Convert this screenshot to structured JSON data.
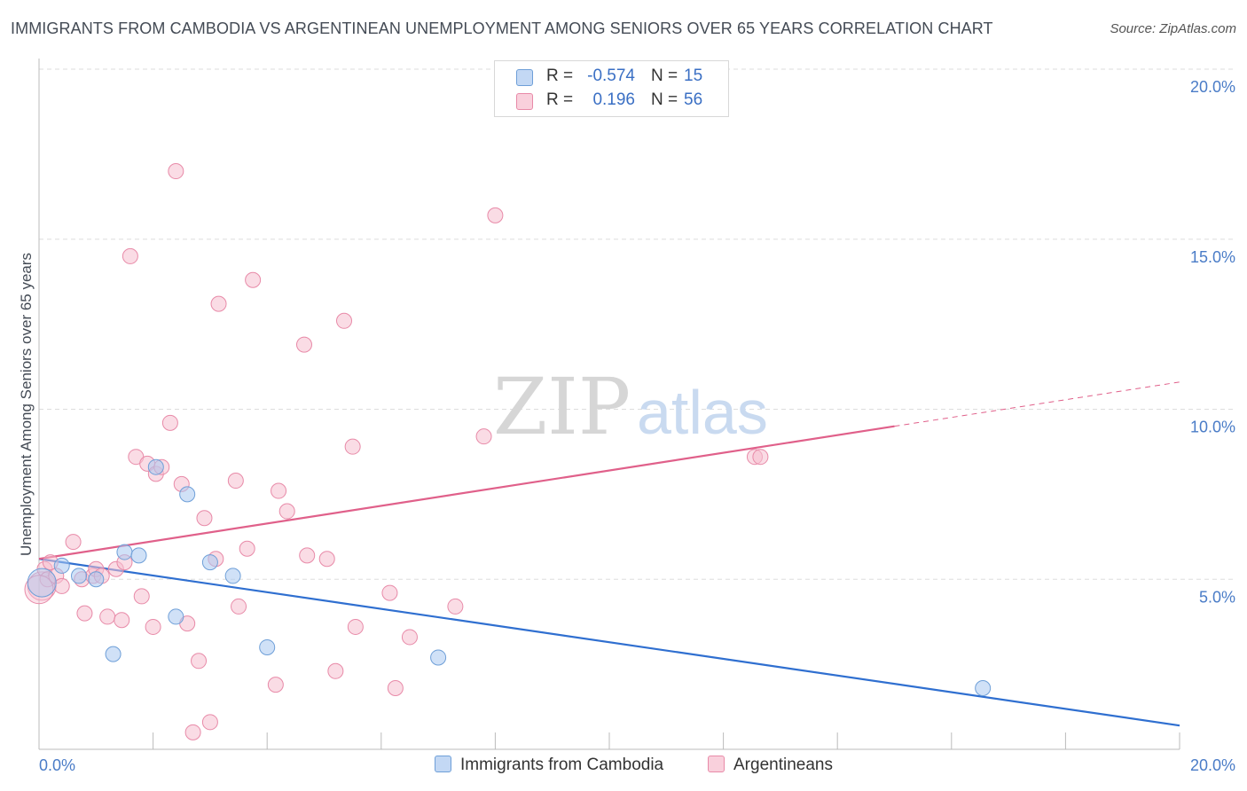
{
  "title": "IMMIGRANTS FROM CAMBODIA VS ARGENTINEAN UNEMPLOYMENT AMONG SENIORS OVER 65 YEARS CORRELATION CHART",
  "source": "Source: ZipAtlas.com",
  "watermark": {
    "zip": "ZIP",
    "atlas": "atlas"
  },
  "legend": {
    "rows": [
      {
        "r_label": "R =",
        "r_value": "-0.574",
        "n_label": "N =",
        "n_value": "15"
      },
      {
        "r_label": "R =",
        "r_value": "0.196",
        "n_label": "N =",
        "n_value": "56"
      }
    ]
  },
  "colors": {
    "blue_fill": "#aac8f0",
    "blue_stroke": "#6e9fd8",
    "blue_line": "#2f6fd0",
    "pink_fill": "#f6bfd0",
    "pink_stroke": "#e88aa8",
    "pink_line": "#e0608a",
    "tick_label": "#4a7cc7",
    "grid": "#dddddd"
  },
  "chart_data": {
    "type": "scatter",
    "title": "IMMIGRANTS FROM CAMBODIA VS ARGENTINEAN UNEMPLOYMENT AMONG SENIORS OVER 65 YEARS CORRELATION CHART",
    "xlabel": "",
    "ylabel": "Unemployment Among Seniors over 65 years",
    "xlim": [
      0,
      20
    ],
    "ylim": [
      0,
      20
    ],
    "x_tick_labels": [
      "0.0%",
      "20.0%"
    ],
    "y_ticks": [
      5,
      10,
      15,
      20
    ],
    "y_tick_labels": [
      "5.0%",
      "10.0%",
      "15.0%",
      "20.0%"
    ],
    "grid": true,
    "legend_position": "top-center",
    "series": [
      {
        "name": "Immigrants from Cambodia",
        "color": "#aac8f0",
        "points": [
          [
            0.05,
            4.9
          ],
          [
            0.4,
            5.4
          ],
          [
            0.7,
            5.1
          ],
          [
            1.0,
            5.0
          ],
          [
            1.3,
            2.8
          ],
          [
            1.5,
            5.8
          ],
          [
            1.75,
            5.7
          ],
          [
            2.05,
            8.3
          ],
          [
            2.4,
            3.9
          ],
          [
            2.6,
            7.5
          ],
          [
            3.0,
            5.5
          ],
          [
            3.4,
            5.1
          ],
          [
            4.0,
            3.0
          ],
          [
            7.0,
            2.7
          ],
          [
            16.55,
            1.8
          ]
        ],
        "trend": {
          "x": [
            0,
            20
          ],
          "y": [
            5.6,
            0.7
          ],
          "solid_to": 20
        }
      },
      {
        "name": "Argentineans",
        "color": "#f6bfd0",
        "points": [
          [
            0.05,
            4.8
          ],
          [
            0.1,
            5.3
          ],
          [
            0.15,
            5.0
          ],
          [
            0.2,
            5.5
          ],
          [
            0.3,
            5.1
          ],
          [
            0.4,
            4.8
          ],
          [
            0.6,
            6.1
          ],
          [
            0.75,
            5.0
          ],
          [
            0.8,
            4.0
          ],
          [
            0.95,
            5.1
          ],
          [
            1.0,
            5.3
          ],
          [
            1.1,
            5.1
          ],
          [
            1.2,
            3.9
          ],
          [
            1.35,
            5.3
          ],
          [
            1.45,
            3.8
          ],
          [
            1.5,
            5.5
          ],
          [
            1.6,
            14.5
          ],
          [
            1.7,
            8.6
          ],
          [
            1.8,
            4.5
          ],
          [
            1.9,
            8.4
          ],
          [
            2.0,
            3.6
          ],
          [
            2.05,
            8.1
          ],
          [
            2.15,
            8.3
          ],
          [
            2.3,
            9.6
          ],
          [
            2.4,
            17.0
          ],
          [
            2.5,
            7.8
          ],
          [
            2.6,
            3.7
          ],
          [
            2.7,
            0.5
          ],
          [
            2.8,
            2.6
          ],
          [
            2.9,
            6.8
          ],
          [
            3.0,
            0.8
          ],
          [
            3.1,
            5.6
          ],
          [
            3.15,
            13.1
          ],
          [
            3.45,
            7.9
          ],
          [
            3.5,
            4.2
          ],
          [
            3.65,
            5.9
          ],
          [
            3.75,
            13.8
          ],
          [
            4.15,
            1.9
          ],
          [
            4.2,
            7.6
          ],
          [
            4.35,
            7.0
          ],
          [
            4.65,
            11.9
          ],
          [
            4.7,
            5.7
          ],
          [
            5.05,
            5.6
          ],
          [
            5.2,
            2.3
          ],
          [
            5.35,
            12.6
          ],
          [
            5.5,
            8.9
          ],
          [
            5.55,
            3.6
          ],
          [
            6.15,
            4.6
          ],
          [
            6.25,
            1.8
          ],
          [
            6.5,
            3.3
          ],
          [
            7.3,
            4.2
          ],
          [
            7.8,
            9.2
          ],
          [
            8.0,
            15.7
          ],
          [
            12.55,
            8.6
          ],
          [
            12.65,
            8.6
          ],
          [
            0.0,
            4.7
          ]
        ],
        "trend": {
          "x": [
            0,
            20
          ],
          "y": [
            5.6,
            10.8
          ],
          "solid_to": 15.0
        }
      }
    ]
  }
}
